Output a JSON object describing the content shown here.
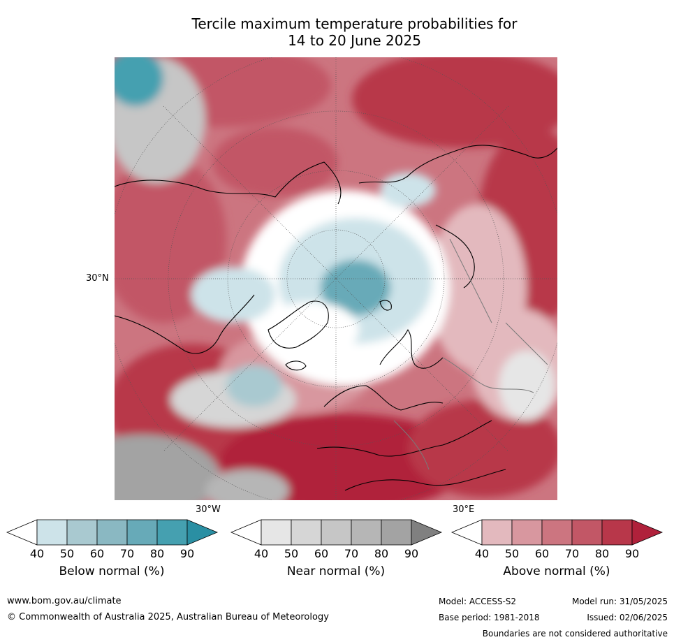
{
  "title_line1": "Tercile maximum temperature probabilities for",
  "title_line2": "14 to 20 June 2025",
  "map": {
    "lat_label": "30°N",
    "lon_left_label": "30°W",
    "lon_right_label": "30°E"
  },
  "legends": [
    {
      "label": "Below normal (%)",
      "ticks": [
        "40",
        "50",
        "60",
        "70",
        "80",
        "90"
      ],
      "colors": [
        "#ffffff",
        "#cde3e9",
        "#a9c9d0",
        "#8ab8c2",
        "#67aab8",
        "#45a0b0",
        "#2a8fa3"
      ]
    },
    {
      "label": "Near normal (%)",
      "ticks": [
        "40",
        "50",
        "60",
        "70",
        "80",
        "90"
      ],
      "colors": [
        "#ffffff",
        "#e6e6e6",
        "#d6d6d6",
        "#c6c6c6",
        "#b6b6b6",
        "#a3a3a3",
        "#808080"
      ]
    },
    {
      "label": "Above normal (%)",
      "ticks": [
        "40",
        "50",
        "60",
        "70",
        "80",
        "90"
      ],
      "colors": [
        "#ffffff",
        "#e3b9be",
        "#d8979f",
        "#cc7580",
        "#c25766",
        "#b8374a",
        "#b0213b"
      ]
    }
  ],
  "footer": {
    "website": "www.bom.gov.au/climate",
    "copyright": "© Commonwealth of Australia 2025, Australian Bureau of Meteorology",
    "model": "Model: ACCESS-S2",
    "base_period": "Base period: 1981-2018",
    "model_run": "Model run: 31/05/2025",
    "issued": "Issued: 02/06/2025",
    "disclaimer": "Boundaries are not considered authoritative"
  }
}
